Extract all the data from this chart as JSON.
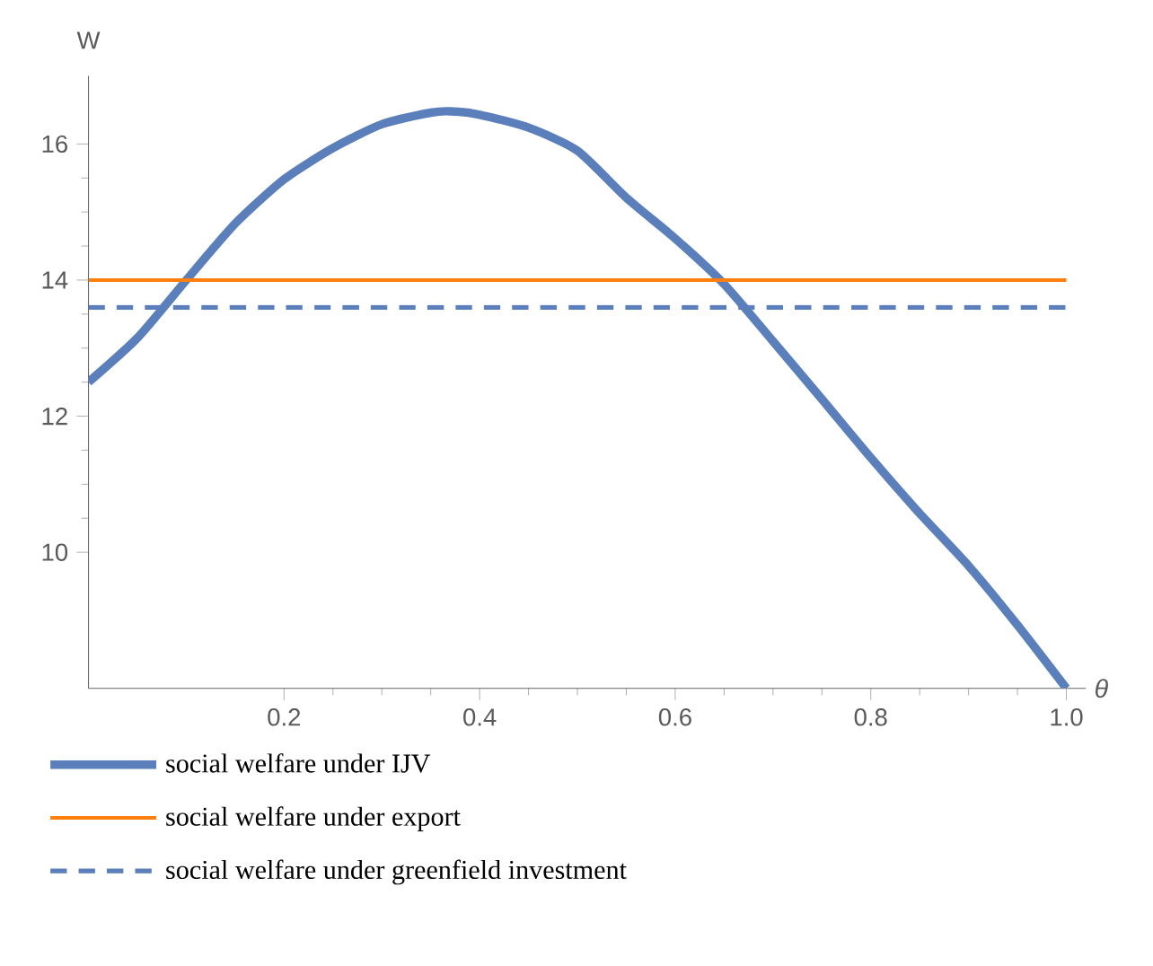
{
  "chart_data": {
    "type": "line",
    "xlabel": "θ",
    "ylabel": "W",
    "xlim": [
      0,
      1.02
    ],
    "ylim": [
      8,
      17
    ],
    "xticks": [
      0.2,
      0.4,
      0.6,
      0.8,
      {
        "value": 1,
        "label": "1.0"
      }
    ],
    "yticks": [
      10,
      12,
      14,
      16
    ],
    "legend": "bottom",
    "series": [
      {
        "name": "social welfare under IJV",
        "color": "#5b7fbb",
        "line_style": "solid",
        "x": [
          0,
          0.05,
          0.1,
          0.15,
          0.2,
          0.25,
          0.3,
          0.35,
          0.37,
          0.4,
          0.45,
          0.5,
          0.55,
          0.6,
          0.65,
          0.7,
          0.75,
          0.8,
          0.85,
          0.9,
          0.95,
          1.0
        ],
        "values": [
          12.5,
          13.15,
          14.0,
          14.83,
          15.48,
          15.94,
          16.29,
          16.46,
          16.48,
          16.43,
          16.24,
          15.9,
          15.21,
          14.61,
          13.94,
          13.1,
          12.25,
          11.39,
          10.57,
          9.8,
          8.93,
          8.0
        ]
      },
      {
        "name": "social welfare under export",
        "color": "#ff7f0e",
        "line_style": "solid",
        "x": [
          0,
          1
        ],
        "values": [
          14,
          14
        ]
      },
      {
        "name": "social welfare under greenfield investment",
        "color": "#5b7fbb",
        "line_style": "dashed",
        "x": [
          0,
          1
        ],
        "values": [
          13.6,
          13.6
        ]
      }
    ]
  }
}
